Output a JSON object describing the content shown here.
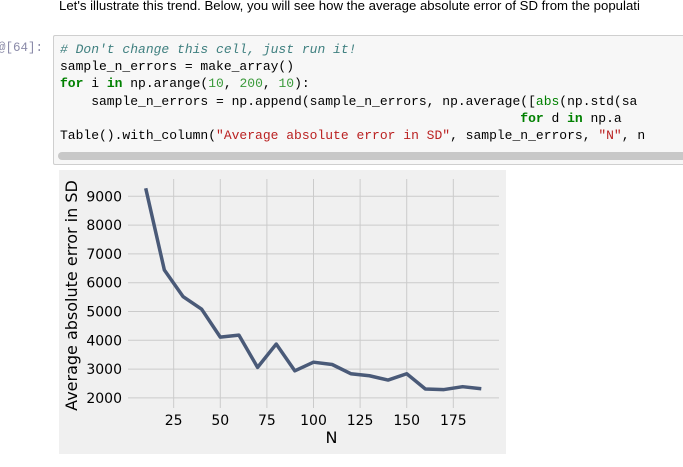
{
  "intro_text": "Let's illustrate this trend. Below, you will see how the average absolute error of SD from the populati",
  "cell": {
    "prompt": "[64]:",
    "comment": "# Don't change this cell, just run it!",
    "line2": "sample_n_errors = make_array()",
    "line3_for": "for",
    "line3_a": " i ",
    "line3_in": "in",
    "line3_b": " np.arange(",
    "line3_n1": "10",
    "line3_c": ", ",
    "line3_n2": "200",
    "line3_d": ", ",
    "line3_n3": "10",
    "line3_e": "):",
    "line4_a": "    sample_n_errors = np.append(sample_n_errors, np.average([",
    "line4_abs": "abs",
    "line4_b": "(np.std(sa",
    "line5_indent": "                                                           ",
    "line5_for": "for",
    "line5_a": " d ",
    "line5_in": "in",
    "line5_b": " np.a",
    "line6_a": "Table().with_column(",
    "line6_str1": "\"Average absolute error in SD\"",
    "line6_b": ", sample_n_errors, ",
    "line6_str2": "\"N\"",
    "line6_c": ", n"
  },
  "chart_data": {
    "type": "line",
    "xlabel": "N",
    "ylabel": "Average absolute error in SD",
    "x": [
      10,
      20,
      30,
      40,
      50,
      60,
      70,
      80,
      90,
      100,
      110,
      120,
      130,
      140,
      150,
      160,
      170,
      180,
      190
    ],
    "series": [
      {
        "values": [
          9280,
          6440,
          5520,
          5080,
          4110,
          4180,
          3060,
          3870,
          2940,
          3240,
          3160,
          2840,
          2770,
          2620,
          2840,
          2310,
          2290,
          2390,
          2320
        ],
        "color": "#4a5a78"
      }
    ],
    "xticks": [
      25,
      50,
      75,
      100,
      125,
      150,
      175
    ],
    "yticks": [
      2000,
      3000,
      4000,
      5000,
      6000,
      7000,
      8000,
      9000
    ],
    "xlim": [
      0.5,
      199.5
    ],
    "ylim": [
      1650,
      9600
    ],
    "grid": true
  }
}
